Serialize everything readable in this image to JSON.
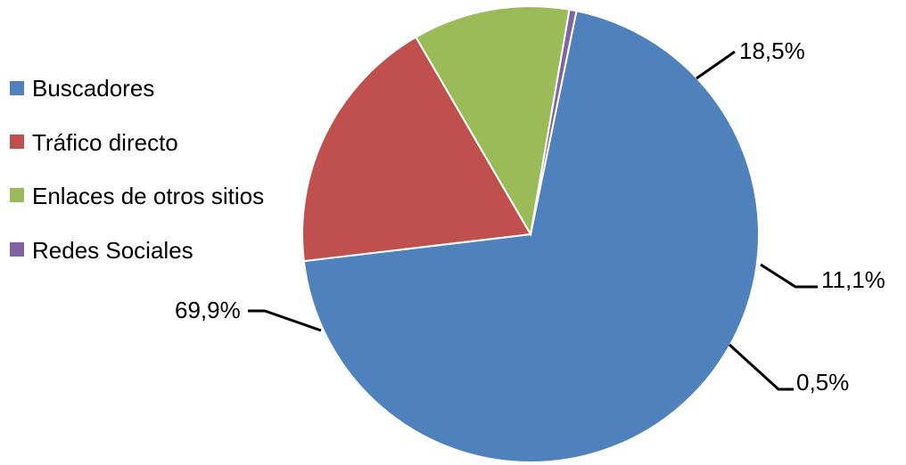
{
  "chart_data": {
    "type": "pie",
    "title": "",
    "categories": [
      "Buscadores",
      "Tráfico directo",
      "Enlaces de otros sitios",
      "Redes Sociales"
    ],
    "values": [
      69.9,
      18.5,
      11.1,
      0.5
    ],
    "data_labels": [
      "69,9%",
      "18,5%",
      "11,1%",
      "0,5%"
    ],
    "colors": [
      "#4F81BD",
      "#C0504D",
      "#9BBB59",
      "#8064A2"
    ],
    "legend_position": "left"
  }
}
